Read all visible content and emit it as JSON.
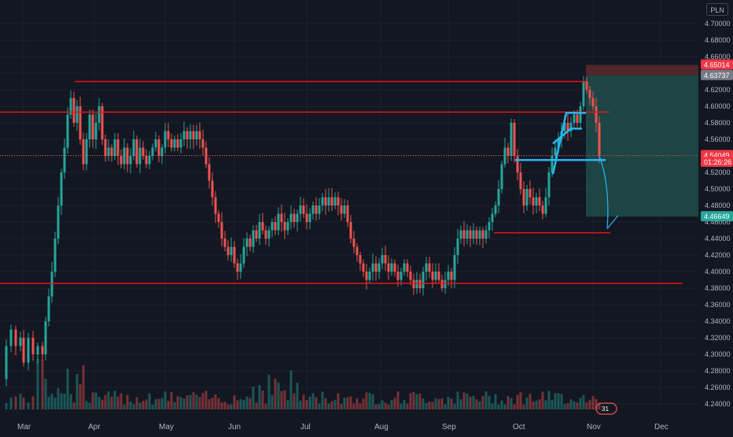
{
  "currency": "PLN",
  "colors": {
    "background": "#131722",
    "grid": "#1e222d",
    "up": "#26a69a",
    "down": "#ef5350",
    "level_line": "#e3171a",
    "pattern": "#29b6f6",
    "profit_zone": "#1f4e4a",
    "stop_zone": "#5a2a2e"
  },
  "price_axis": {
    "ticks": [
      "4.70000",
      "4.68000",
      "4.66000",
      "4.64000",
      "4.62000",
      "4.60000",
      "4.58000",
      "4.56000",
      "4.54000",
      "4.52000",
      "4.50000",
      "4.48000",
      "4.46000",
      "4.44000",
      "4.42000",
      "4.40000",
      "4.38000",
      "4.36000",
      "4.34000",
      "4.32000",
      "4.30000",
      "4.28000",
      "4.26000",
      "4.24000"
    ],
    "markers": [
      {
        "label": "4.65014",
        "value": 4.65014,
        "bg": "#f23645",
        "fg": "#ffffff"
      },
      {
        "label": "4.63737",
        "value": 4.63737,
        "bg": "#787b86",
        "fg": "#ffffff"
      },
      {
        "label": "4.54049",
        "value": 4.54049,
        "bg": "#f23645",
        "fg": "#ffffff"
      },
      {
        "label": "01:26:26",
        "value": 4.5325,
        "bg": "#f23645",
        "fg": "#ffffff"
      },
      {
        "label": "4.46649",
        "value": 4.46649,
        "bg": "#26a69a",
        "fg": "#ffffff"
      }
    ]
  },
  "time_axis": {
    "labels": [
      "Mar",
      "Apr",
      "May",
      "Jun",
      "Jul",
      "Aug",
      "Sep",
      "Oct",
      "Nov",
      "Dec"
    ]
  },
  "volume_badge": "31",
  "chart_data": {
    "type": "candlestick",
    "x": [
      "Mar",
      "Apr",
      "May",
      "Jun",
      "Jul",
      "Aug",
      "Sep",
      "Oct",
      "Nov"
    ],
    "price_path": [
      [
        0,
        4.27
      ],
      [
        8,
        4.31
      ],
      [
        14,
        4.33
      ],
      [
        20,
        4.31
      ],
      [
        26,
        4.32
      ],
      [
        30,
        4.29
      ],
      [
        36,
        4.32
      ],
      [
        42,
        4.3
      ],
      [
        48,
        4.31
      ],
      [
        54,
        4.3
      ],
      [
        58,
        4.34
      ],
      [
        62,
        4.37
      ],
      [
        66,
        4.4
      ],
      [
        70,
        4.44
      ],
      [
        74,
        4.48
      ],
      [
        78,
        4.52
      ],
      [
        82,
        4.55
      ],
      [
        86,
        4.59
      ],
      [
        90,
        4.61
      ],
      [
        94,
        4.58
      ],
      [
        98,
        4.6
      ],
      [
        102,
        4.56
      ],
      [
        106,
        4.53
      ],
      [
        110,
        4.56
      ],
      [
        114,
        4.59
      ],
      [
        118,
        4.56
      ],
      [
        122,
        4.58
      ],
      [
        126,
        4.6
      ],
      [
        130,
        4.56
      ],
      [
        134,
        4.54
      ],
      [
        138,
        4.55
      ],
      [
        142,
        4.54
      ],
      [
        146,
        4.56
      ],
      [
        150,
        4.54
      ],
      [
        154,
        4.53
      ],
      [
        158,
        4.55
      ],
      [
        162,
        4.53
      ],
      [
        166,
        4.54
      ],
      [
        170,
        4.56
      ],
      [
        174,
        4.53
      ],
      [
        178,
        4.55
      ],
      [
        182,
        4.54
      ],
      [
        186,
        4.53
      ],
      [
        190,
        4.54
      ],
      [
        194,
        4.55
      ],
      [
        198,
        4.56
      ],
      [
        202,
        4.54
      ],
      [
        206,
        4.55
      ],
      [
        210,
        4.57
      ],
      [
        214,
        4.56
      ],
      [
        218,
        4.55
      ],
      [
        222,
        4.56
      ],
      [
        226,
        4.55
      ],
      [
        230,
        4.56
      ],
      [
        234,
        4.57
      ],
      [
        238,
        4.56
      ],
      [
        242,
        4.57
      ],
      [
        246,
        4.56
      ],
      [
        250,
        4.57
      ],
      [
        254,
        4.56
      ],
      [
        258,
        4.55
      ],
      [
        262,
        4.53
      ],
      [
        266,
        4.51
      ],
      [
        270,
        4.49
      ],
      [
        274,
        4.47
      ],
      [
        278,
        4.46
      ],
      [
        282,
        4.44
      ],
      [
        286,
        4.43
      ],
      [
        290,
        4.42
      ],
      [
        294,
        4.43
      ],
      [
        298,
        4.41
      ],
      [
        302,
        4.4
      ],
      [
        306,
        4.41
      ],
      [
        310,
        4.43
      ],
      [
        314,
        4.44
      ],
      [
        318,
        4.43
      ],
      [
        322,
        4.45
      ],
      [
        326,
        4.44
      ],
      [
        330,
        4.46
      ],
      [
        334,
        4.45
      ],
      [
        338,
        4.44
      ],
      [
        342,
        4.45
      ],
      [
        346,
        4.46
      ],
      [
        350,
        4.45
      ],
      [
        354,
        4.47
      ],
      [
        358,
        4.46
      ],
      [
        362,
        4.45
      ],
      [
        366,
        4.46
      ],
      [
        370,
        4.47
      ],
      [
        374,
        4.46
      ],
      [
        378,
        4.47
      ],
      [
        382,
        4.48
      ],
      [
        386,
        4.47
      ],
      [
        390,
        4.46
      ],
      [
        394,
        4.47
      ],
      [
        398,
        4.48
      ],
      [
        402,
        4.47
      ],
      [
        406,
        4.48
      ],
      [
        410,
        4.49
      ],
      [
        414,
        4.48
      ],
      [
        418,
        4.49
      ],
      [
        422,
        4.48
      ],
      [
        426,
        4.49
      ],
      [
        430,
        4.48
      ],
      [
        434,
        4.47
      ],
      [
        438,
        4.48
      ],
      [
        442,
        4.46
      ],
      [
        446,
        4.44
      ],
      [
        450,
        4.43
      ],
      [
        454,
        4.42
      ],
      [
        458,
        4.41
      ],
      [
        462,
        4.4
      ],
      [
        466,
        4.39
      ],
      [
        470,
        4.4
      ],
      [
        474,
        4.41
      ],
      [
        478,
        4.4
      ],
      [
        482,
        4.41
      ],
      [
        486,
        4.42
      ],
      [
        490,
        4.41
      ],
      [
        494,
        4.4
      ],
      [
        498,
        4.41
      ],
      [
        502,
        4.4
      ],
      [
        506,
        4.39
      ],
      [
        510,
        4.4
      ],
      [
        514,
        4.41
      ],
      [
        518,
        4.4
      ],
      [
        522,
        4.39
      ],
      [
        526,
        4.38
      ],
      [
        530,
        4.39
      ],
      [
        534,
        4.38
      ],
      [
        538,
        4.4
      ],
      [
        542,
        4.41
      ],
      [
        546,
        4.4
      ],
      [
        550,
        4.39
      ],
      [
        554,
        4.4
      ],
      [
        558,
        4.39
      ],
      [
        562,
        4.38
      ],
      [
        566,
        4.39
      ],
      [
        570,
        4.4
      ],
      [
        574,
        4.39
      ],
      [
        578,
        4.42
      ],
      [
        582,
        4.44
      ],
      [
        586,
        4.45
      ],
      [
        590,
        4.44
      ],
      [
        594,
        4.45
      ],
      [
        598,
        4.44
      ],
      [
        602,
        4.45
      ],
      [
        606,
        4.44
      ],
      [
        610,
        4.45
      ],
      [
        614,
        4.44
      ],
      [
        618,
        4.45
      ],
      [
        622,
        4.46
      ],
      [
        626,
        4.47
      ],
      [
        630,
        4.48
      ],
      [
        634,
        4.5
      ],
      [
        638,
        4.53
      ],
      [
        642,
        4.55
      ],
      [
        646,
        4.54
      ],
      [
        650,
        4.58
      ],
      [
        654,
        4.54
      ],
      [
        658,
        4.52
      ],
      [
        662,
        4.5
      ],
      [
        666,
        4.48
      ],
      [
        670,
        4.5
      ],
      [
        674,
        4.49
      ],
      [
        678,
        4.48
      ],
      [
        682,
        4.49
      ],
      [
        686,
        4.48
      ],
      [
        690,
        4.47
      ],
      [
        694,
        4.49
      ],
      [
        698,
        4.52
      ],
      [
        702,
        4.54
      ],
      [
        706,
        4.55
      ],
      [
        710,
        4.56
      ],
      [
        714,
        4.57
      ],
      [
        718,
        4.58
      ],
      [
        722,
        4.57
      ],
      [
        726,
        4.58
      ],
      [
        730,
        4.59
      ],
      [
        734,
        4.58
      ],
      [
        738,
        4.6
      ],
      [
        742,
        4.63
      ],
      [
        746,
        4.62
      ],
      [
        750,
        4.61
      ],
      [
        754,
        4.6
      ],
      [
        758,
        4.58
      ],
      [
        762,
        4.54
      ]
    ],
    "candle_step": 4,
    "levels": [
      4.63,
      4.593,
      4.386,
      4.447
    ],
    "pattern_levels": [
      4.535
    ],
    "trade": {
      "entry": 4.63737,
      "stop": 4.65014,
      "target": 4.46649
    }
  }
}
